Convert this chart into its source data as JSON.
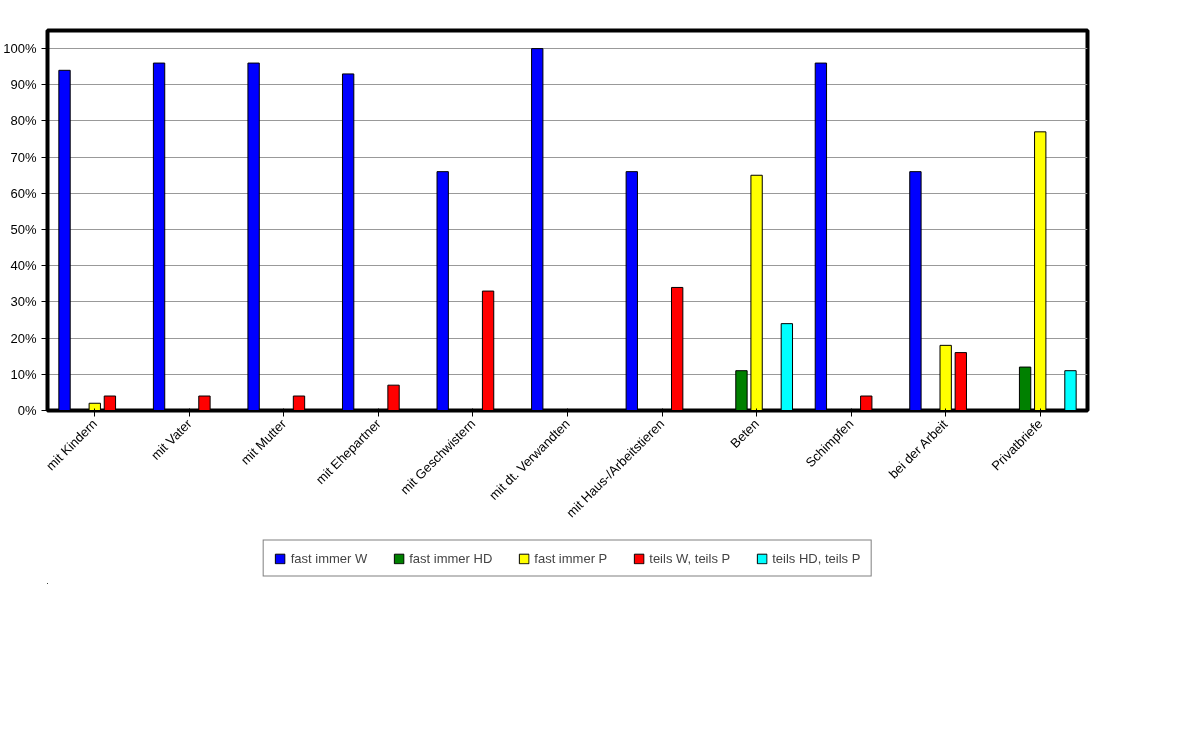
{
  "chart_data": {
    "type": "bar",
    "categories": [
      "mit Kindern",
      "mit Vater",
      "mit Mutter",
      "mit Ehepartner",
      "mit Geschwistern",
      "mit dt. Verwandten",
      "mit Haus-/Arbeitstieren",
      "Beten",
      "Schimpfen",
      "bei der Arbeit",
      "Privatbriefe"
    ],
    "series": [
      {
        "name": "fast immer W",
        "color": "#0000ff",
        "values": [
          94,
          96,
          96,
          93,
          66,
          100,
          66,
          null,
          96,
          66,
          null
        ]
      },
      {
        "name": "fast immer HD",
        "color": "#008000",
        "values": [
          null,
          null,
          null,
          null,
          null,
          null,
          null,
          11,
          null,
          null,
          12
        ]
      },
      {
        "name": "fast immer P",
        "color": "#ffff00",
        "values": [
          2,
          null,
          null,
          null,
          null,
          null,
          null,
          65,
          null,
          18,
          77
        ]
      },
      {
        "name": "teils W, teils P",
        "color": "#ff0000",
        "values": [
          4,
          4,
          4,
          7,
          33,
          null,
          34,
          null,
          4,
          16,
          null
        ]
      },
      {
        "name": "teils HD, teils P",
        "color": "#00ffff",
        "values": [
          null,
          null,
          null,
          null,
          null,
          null,
          null,
          24,
          null,
          null,
          11
        ]
      }
    ],
    "ylim": [
      0,
      105
    ],
    "yticks": [
      {
        "value": 0,
        "label": "0%"
      },
      {
        "value": 10,
        "label": "10%"
      },
      {
        "value": 20,
        "label": "20%"
      },
      {
        "value": 30,
        "label": "30%"
      },
      {
        "value": 40,
        "label": "40%"
      },
      {
        "value": 50,
        "label": "50%"
      },
      {
        "value": 60,
        "label": "60%"
      },
      {
        "value": 70,
        "label": "70%"
      },
      {
        "value": 80,
        "label": "80%"
      },
      {
        "value": 90,
        "label": "90%"
      },
      {
        "value": 100,
        "label": "100%"
      }
    ],
    "grid": "y",
    "legend": "bottom"
  }
}
